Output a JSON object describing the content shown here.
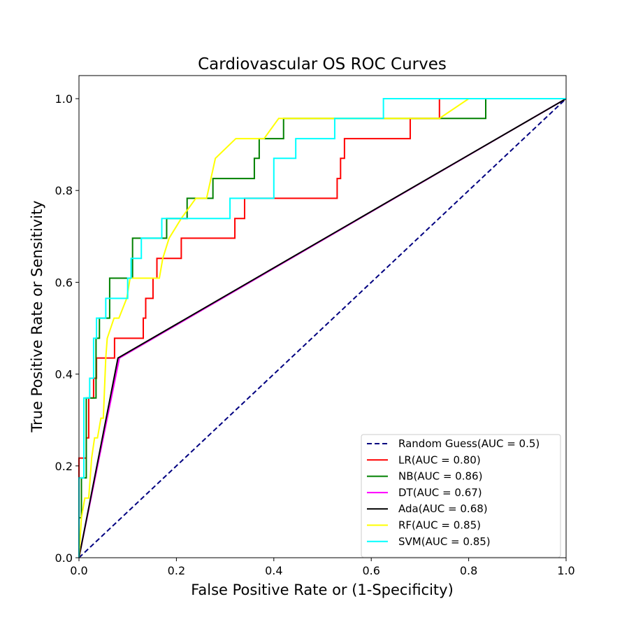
{
  "chart_data": {
    "type": "line",
    "title": "Cardiovascular OS ROC Curves",
    "xlabel": "False Positive Rate or (1-Specificity)",
    "ylabel": "True Positive Rate or Sensitivity",
    "xlim": [
      0.0,
      1.0
    ],
    "ylim": [
      0.0,
      1.0
    ],
    "xticks": [
      "0.0",
      "0.2",
      "0.4",
      "0.6",
      "0.8",
      "1.0"
    ],
    "yticks": [
      "0.0",
      "0.2",
      "0.4",
      "0.6",
      "0.8",
      "1.0"
    ],
    "grid": false,
    "legend_position": "lower-right",
    "series": [
      {
        "name": "Random Guess(AUC = 0.5)",
        "color": "#000080",
        "dash": true,
        "points": [
          [
            0.0,
            0.0
          ],
          [
            1.0,
            1.0
          ]
        ]
      },
      {
        "name": "LR(AUC = 0.80)",
        "color": "#ff0000",
        "dash": false,
        "points": [
          [
            0.0,
            0.0
          ],
          [
            0.0,
            0.217
          ],
          [
            0.015,
            0.217
          ],
          [
            0.015,
            0.261
          ],
          [
            0.02,
            0.261
          ],
          [
            0.02,
            0.348
          ],
          [
            0.03,
            0.348
          ],
          [
            0.03,
            0.391
          ],
          [
            0.036,
            0.391
          ],
          [
            0.036,
            0.435
          ],
          [
            0.073,
            0.435
          ],
          [
            0.073,
            0.478
          ],
          [
            0.132,
            0.478
          ],
          [
            0.132,
            0.522
          ],
          [
            0.137,
            0.522
          ],
          [
            0.137,
            0.565
          ],
          [
            0.152,
            0.565
          ],
          [
            0.152,
            0.609
          ],
          [
            0.16,
            0.609
          ],
          [
            0.16,
            0.652
          ],
          [
            0.21,
            0.652
          ],
          [
            0.21,
            0.696
          ],
          [
            0.32,
            0.696
          ],
          [
            0.32,
            0.739
          ],
          [
            0.34,
            0.739
          ],
          [
            0.34,
            0.783
          ],
          [
            0.53,
            0.783
          ],
          [
            0.53,
            0.826
          ],
          [
            0.537,
            0.826
          ],
          [
            0.537,
            0.87
          ],
          [
            0.545,
            0.87
          ],
          [
            0.545,
            0.913
          ],
          [
            0.68,
            0.913
          ],
          [
            0.68,
            0.957
          ],
          [
            0.74,
            0.957
          ],
          [
            0.74,
            1.0
          ],
          [
            1.0,
            1.0
          ]
        ]
      },
      {
        "name": "NB(AUC = 0.86)",
        "color": "#008000",
        "dash": false,
        "points": [
          [
            0.0,
            0.0
          ],
          [
            0.0,
            0.087
          ],
          [
            0.005,
            0.087
          ],
          [
            0.005,
            0.174
          ],
          [
            0.015,
            0.174
          ],
          [
            0.015,
            0.348
          ],
          [
            0.035,
            0.348
          ],
          [
            0.035,
            0.478
          ],
          [
            0.042,
            0.478
          ],
          [
            0.042,
            0.522
          ],
          [
            0.063,
            0.522
          ],
          [
            0.063,
            0.609
          ],
          [
            0.11,
            0.609
          ],
          [
            0.11,
            0.696
          ],
          [
            0.18,
            0.696
          ],
          [
            0.18,
            0.739
          ],
          [
            0.222,
            0.739
          ],
          [
            0.222,
            0.783
          ],
          [
            0.275,
            0.783
          ],
          [
            0.275,
            0.826
          ],
          [
            0.36,
            0.826
          ],
          [
            0.36,
            0.87
          ],
          [
            0.37,
            0.87
          ],
          [
            0.37,
            0.913
          ],
          [
            0.42,
            0.913
          ],
          [
            0.42,
            0.957
          ],
          [
            0.75,
            0.957
          ],
          [
            0.835,
            0.957
          ],
          [
            0.835,
            1.0
          ],
          [
            1.0,
            1.0
          ]
        ]
      },
      {
        "name": "DT(AUC = 0.67)",
        "color": "#ff00ff",
        "dash": false,
        "points": [
          [
            0.0,
            0.0
          ],
          [
            0.083,
            0.435
          ],
          [
            1.0,
            1.0
          ]
        ]
      },
      {
        "name": "Ada(AUC = 0.68)",
        "color": "#000000",
        "dash": false,
        "points": [
          [
            0.0,
            0.0
          ],
          [
            0.08,
            0.435
          ],
          [
            1.0,
            1.0
          ]
        ]
      },
      {
        "name": "RF(AUC = 0.85)",
        "color": "#ffff00",
        "dash": false,
        "points": [
          [
            0.0,
            0.0
          ],
          [
            0.005,
            0.087
          ],
          [
            0.012,
            0.13
          ],
          [
            0.02,
            0.13
          ],
          [
            0.026,
            0.217
          ],
          [
            0.032,
            0.261
          ],
          [
            0.038,
            0.261
          ],
          [
            0.045,
            0.304
          ],
          [
            0.05,
            0.304
          ],
          [
            0.055,
            0.435
          ],
          [
            0.058,
            0.478
          ],
          [
            0.072,
            0.522
          ],
          [
            0.082,
            0.522
          ],
          [
            0.098,
            0.565
          ],
          [
            0.105,
            0.609
          ],
          [
            0.165,
            0.609
          ],
          [
            0.172,
            0.652
          ],
          [
            0.185,
            0.696
          ],
          [
            0.21,
            0.739
          ],
          [
            0.24,
            0.783
          ],
          [
            0.262,
            0.783
          ],
          [
            0.28,
            0.87
          ],
          [
            0.322,
            0.913
          ],
          [
            0.38,
            0.913
          ],
          [
            0.41,
            0.957
          ],
          [
            0.74,
            0.957
          ],
          [
            0.8,
            1.0
          ],
          [
            1.0,
            1.0
          ]
        ]
      },
      {
        "name": "SVM(AUC = 0.85)",
        "color": "#00ffff",
        "dash": false,
        "points": [
          [
            0.0,
            0.0
          ],
          [
            0.0,
            0.174
          ],
          [
            0.01,
            0.174
          ],
          [
            0.01,
            0.348
          ],
          [
            0.022,
            0.348
          ],
          [
            0.022,
            0.391
          ],
          [
            0.03,
            0.391
          ],
          [
            0.03,
            0.478
          ],
          [
            0.036,
            0.478
          ],
          [
            0.036,
            0.522
          ],
          [
            0.055,
            0.522
          ],
          [
            0.055,
            0.565
          ],
          [
            0.1,
            0.565
          ],
          [
            0.1,
            0.609
          ],
          [
            0.107,
            0.609
          ],
          [
            0.107,
            0.652
          ],
          [
            0.128,
            0.652
          ],
          [
            0.128,
            0.696
          ],
          [
            0.17,
            0.696
          ],
          [
            0.17,
            0.739
          ],
          [
            0.31,
            0.739
          ],
          [
            0.31,
            0.783
          ],
          [
            0.4,
            0.783
          ],
          [
            0.4,
            0.87
          ],
          [
            0.445,
            0.87
          ],
          [
            0.445,
            0.913
          ],
          [
            0.525,
            0.913
          ],
          [
            0.525,
            0.957
          ],
          [
            0.625,
            0.957
          ],
          [
            0.625,
            1.0
          ],
          [
            1.0,
            1.0
          ]
        ]
      }
    ]
  }
}
